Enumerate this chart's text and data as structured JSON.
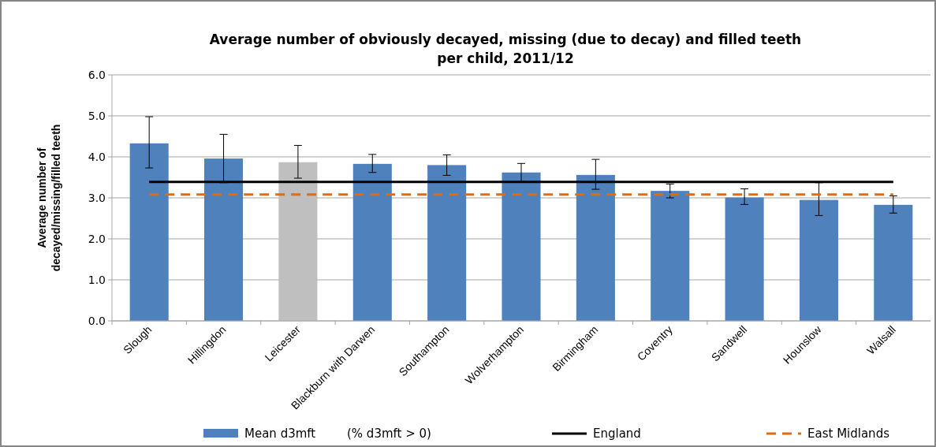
{
  "chart_data": {
    "type": "bar",
    "title": "Average number of obviously decayed, missing (due to decay) and filled teeth per child, 2011/12",
    "ylabel": "Average number of decayed/missing/filled teeth",
    "categories": [
      "Slough",
      "Hillingdon",
      "Leicester",
      "Blackburn with Darwen",
      "Southampton",
      "Wolverhampton",
      "Birmingham",
      "Coventry",
      "Sandwell",
      "Hounslow",
      "Walsall"
    ],
    "series": [
      {
        "name": "Mean d3mft",
        "color": "#4f81bd",
        "colors": [
          "#4f81bd",
          "#4f81bd",
          "#bfbfbf",
          "#4f81bd",
          "#4f81bd",
          "#4f81bd",
          "#4f81bd",
          "#4f81bd",
          "#4f81bd",
          "#4f81bd",
          "#4f81bd"
        ],
        "values": [
          4.33,
          3.96,
          3.87,
          3.83,
          3.8,
          3.62,
          3.56,
          3.17,
          3.01,
          2.95,
          2.83
        ],
        "errors": [
          [
            3.73,
            4.98
          ],
          [
            3.37,
            4.55
          ],
          [
            3.48,
            4.28
          ],
          [
            3.62,
            4.06
          ],
          [
            3.55,
            4.05
          ],
          [
            3.4,
            3.84
          ],
          [
            3.21,
            3.94
          ],
          [
            3.0,
            3.34
          ],
          [
            2.84,
            3.22
          ],
          [
            2.57,
            3.37
          ],
          [
            2.63,
            3.05
          ]
        ]
      },
      {
        "name": "England",
        "type": "line",
        "color": "#000000",
        "line_style": "solid",
        "values": [
          3.39,
          3.39,
          3.39,
          3.39,
          3.39,
          3.39,
          3.39,
          3.39,
          3.39,
          3.39,
          3.39
        ]
      },
      {
        "name": "East Midlands",
        "type": "line",
        "color": "#e36c09",
        "line_style": "dashed",
        "values": [
          3.08,
          3.08,
          3.08,
          3.08,
          3.08,
          3.08,
          3.08,
          3.08,
          3.08,
          3.08,
          3.08
        ]
      }
    ],
    "ylim": [
      0,
      6
    ],
    "yticks": [
      {
        "value": 0,
        "label": "0.0"
      },
      {
        "value": 1,
        "label": "1.0"
      },
      {
        "value": 2,
        "label": "2.0"
      },
      {
        "value": 3,
        "label": "3.0"
      },
      {
        "value": 4,
        "label": "4.0"
      },
      {
        "value": 5,
        "label": "5.0"
      },
      {
        "value": 6,
        "label": "6.0"
      }
    ],
    "grid": "y",
    "legend": "bottom",
    "marker": "none",
    "annotations": [
      "(% d3mft > 0)"
    ]
  }
}
